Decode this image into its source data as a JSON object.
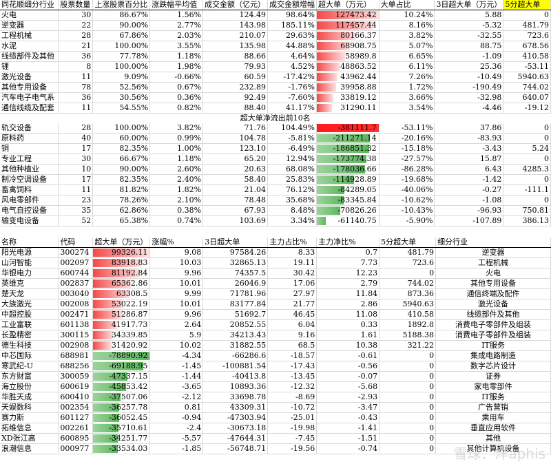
{
  "top_table": {
    "headers": [
      "同花顺细分行业",
      "股票数量",
      "上涨股票百分比",
      "涨跌幅平均值",
      "成交金额（亿元）",
      "成交金额增幅",
      "超大单（万元）",
      "大单占比",
      "3日超大单（万元）",
      "5分超大单"
    ],
    "section1": [
      [
        "火电",
        "30",
        "86.67%",
        "1.56%",
        "124.49",
        "98.64%",
        "127473.42",
        "10.24%",
        "5.88",
        "0"
      ],
      [
        "逆变器",
        "22",
        "90.00%",
        "2.77%",
        "143.98",
        "185.11%",
        "117457.44",
        "8.16%",
        "-5.32",
        "481.79"
      ],
      [
        "工程机械",
        "28",
        "67.86%",
        "2.03%",
        "210.07",
        "29.63%",
        "80166.37",
        "3.82%",
        "-32.55",
        "723.6"
      ],
      [
        "水泥",
        "21",
        "100.00%",
        "3.55%",
        "135.98",
        "44.88%",
        "68908.75",
        "5.07%",
        "88.75",
        "678.56"
      ],
      [
        "线缆部件及其他",
        "36",
        "77.78%",
        "1.18%",
        "88.66",
        "4.64%",
        "58989.8",
        "6.65%",
        "-1.09",
        "410.58"
      ],
      [
        "锂",
        "8",
        "100.00%",
        "1.98%",
        "79.93",
        "4.52%",
        "48863.52",
        "6.11%",
        "25.36",
        "-53.11"
      ],
      [
        "激光设备",
        "11",
        "9.09%",
        "-0.66%",
        "60.59",
        "-17.42%",
        "43962.44",
        "7.26%",
        "-10.49",
        "5940.63"
      ],
      [
        "其他专用设备",
        "78",
        "52.56%",
        "0.67%",
        "232.89",
        "-1.76%",
        "39958.88",
        "1.72%",
        "-190.49",
        "744.02"
      ],
      [
        "汽车电子电气系",
        "36",
        "30.56%",
        "0.36%",
        "92.49",
        "-7.60%",
        "33819.12",
        "3.66%",
        "-32.98",
        "640.07"
      ],
      [
        "通信线缆及配套",
        "11",
        "54.55%",
        "0.82%",
        "88.40",
        "41.17%",
        "31290.11",
        "3.54%",
        "-4.46",
        "-19.12"
      ]
    ],
    "section1_fill": [
      1.0,
      0.92,
      0.63,
      0.54,
      0.46,
      0.38,
      0.34,
      0.31,
      0.27,
      0.25
    ],
    "divider_label": "超大单净流出前10名",
    "section2": [
      [
        "轨交设备",
        "28",
        "100.00%",
        "3.82%",
        "71.76",
        "104.49%",
        "-381111.7",
        "-53.11%",
        "37.86",
        "0"
      ],
      [
        "原料药",
        "40",
        "60.00%",
        "0.99%",
        "104.78",
        "-5.81%",
        "-211271.14",
        "-20.16%",
        "-83.93",
        "0"
      ],
      [
        "铜",
        "17",
        "82.35%",
        "1.00%",
        "123.10",
        "-6.49%",
        "-186851.32",
        "-15.18%",
        "-3.43",
        "5.24"
      ],
      [
        "专业工程",
        "30",
        "66.67%",
        "1.18%",
        "65.20",
        "12.94%",
        "-173774.38",
        "-27.57%",
        "15.87",
        "0"
      ],
      [
        "其他种植业",
        "10",
        "90.00%",
        "2.60%",
        "20.63",
        "68.08%",
        "-178036.66",
        "-86.28%",
        "6.43",
        "4285.3"
      ],
      [
        "制冷空调设备",
        "17",
        "82.35%",
        "2.40%",
        "58.40",
        "25.83%",
        "-114928.89",
        "-19.68%",
        "-1.42",
        "0"
      ],
      [
        "畜禽饲料",
        "11",
        "81.82%",
        "1.82%",
        "21.04",
        "76.12%",
        "-84289.05",
        "-40.06%",
        "-0.27",
        "-111.1"
      ],
      [
        "风电零部件",
        "23",
        "78.26%",
        "2.10%",
        "78.48",
        "35.68%",
        "-83345.84",
        "-10.62%",
        "-1.08",
        "0"
      ],
      [
        "电气自控设备",
        "35",
        "62.86%",
        "0.38%",
        "67.93",
        "8.48%",
        "-70826.26",
        "-10.43%",
        "-96.93",
        "750.81"
      ],
      [
        "输变电设备",
        "52",
        "65.38%",
        "0.74%",
        "103.69",
        "3.34%",
        "-61140.75",
        "-5.90%",
        "-107.89",
        "386.13"
      ]
    ],
    "section2_fill": [
      1.0,
      0.86,
      0.85,
      0.8,
      0.78,
      0.6,
      0.45,
      0.44,
      0.38,
      0.15
    ]
  },
  "bottom_table": {
    "headers": [
      "名称",
      "代码",
      "超大单（万元）",
      "涨幅%",
      "3日超大单",
      "主力占比%",
      "主力净比%",
      "5分超大单",
      "细分行业"
    ],
    "rows": [
      [
        "阳光电源",
        "300274",
        "99326.11",
        "9.08",
        "97584.26",
        "8.33",
        "0.7",
        "481.79",
        "逆变器"
      ],
      [
        "山河智能",
        "002097",
        "83918.83",
        "10.03",
        "32865.13",
        "19.11",
        "7.73",
        "723.6",
        "工程机械"
      ],
      [
        "华银电力",
        "600744",
        "81192.84",
        "9.96",
        "74357.5",
        "30.42",
        "12.23",
        "0",
        "火电"
      ],
      [
        "英维克",
        "002837",
        "65362.86",
        "10.01",
        "26046.9",
        "17.06",
        "2.79",
        "744.02",
        "其他专用设备"
      ],
      [
        "楚天龙",
        "003040",
        "63308.5",
        "9.99",
        "71781.96",
        "27.97",
        "11.84",
        "873.36",
        "通信终端及配件"
      ],
      [
        "大族激光",
        "002008",
        "53022.19",
        "10.01",
        "83177.84",
        "21.77",
        "2.86",
        "5940.63",
        "激光设备"
      ],
      [
        "中超控股",
        "002471",
        "51286.87",
        "9.96",
        "51692.7",
        "46.45",
        "11.08",
        "410.58",
        "线缆部件及其他"
      ],
      [
        "工业富联",
        "601138",
        "41917.73",
        "2.64",
        "20852.55",
        "6.04",
        "0.33",
        "1892.8",
        "消费电子零部件及组装"
      ],
      [
        "长盈精密",
        "300115",
        "34339.85",
        "5.9",
        "34213.43",
        "9.16",
        "1.61",
        "5188.38",
        "消费电子零部件及组装"
      ],
      [
        "德生科技",
        "002908",
        "31420.92",
        "10.02",
        "31882.55",
        "68.5",
        "10.38",
        "321.22",
        "IT服务"
      ],
      [
        "中芯国际",
        "688981",
        "-78890.92",
        "-4.34",
        "-66286.6",
        "-18.57",
        "-0.61",
        "0",
        "集成电路制造"
      ],
      [
        "寒武纪-U",
        "688256",
        "-69188.95",
        "-1.45",
        "-100881.54",
        "-17.43",
        "-0.56",
        "0",
        "数字芯片设计"
      ],
      [
        "东方财富",
        "300059",
        "-47337.15",
        "-1.44",
        "-40413.8",
        "-13.45",
        "-0.07",
        "0",
        "证券"
      ],
      [
        "海立股份",
        "600619",
        "-45853.42",
        "-3.65",
        "10893.36",
        "-12.32",
        "-5.68",
        "0",
        "家电零部件"
      ],
      [
        "华胜天成",
        "600410",
        "-37507.06",
        "-2.12",
        "33698.78",
        "-8.69",
        "-2.93",
        "0",
        "IT服务"
      ],
      [
        "天娱数科",
        "002354",
        "-36257.78",
        "0.81",
        "43309.31",
        "-10.72",
        "-3.47",
        "0",
        "广告营销"
      ],
      [
        "赛力斯",
        "601127",
        "-36052.45",
        "-0.94",
        "-47303.94",
        "-25.01",
        "-0.43",
        "0",
        "乘用车"
      ],
      [
        "拓维信息",
        "002261",
        "-35710.61",
        "-2.4",
        "-30673.18",
        "-19.98",
        "-1.41",
        "0",
        "垂直应用软件"
      ],
      [
        "XD张江高",
        "600895",
        "-34251.77",
        "-5.57",
        "-47644.31",
        "-7.45",
        "-1.51",
        "0",
        "其他"
      ],
      [
        "浪潮信息",
        "000977",
        "-33534.03",
        "-1.85",
        "-56748.71",
        "-19.56",
        "-0.74",
        "0",
        "其他计算机设备"
      ]
    ],
    "fill": [
      1.0,
      0.84,
      0.82,
      0.66,
      0.64,
      0.53,
      0.52,
      0.42,
      0.35,
      0.32,
      1.0,
      0.88,
      0.6,
      0.58,
      0.48,
      0.46,
      0.46,
      0.45,
      0.43,
      0.43
    ]
  },
  "watermark": "雪球：洋aphis",
  "colors": {
    "highlight": "#ffff00",
    "pos_bar": "#f44848",
    "neg_bar_top": "#ff1a1a",
    "neg_bar_green": "#5bb55b"
  }
}
